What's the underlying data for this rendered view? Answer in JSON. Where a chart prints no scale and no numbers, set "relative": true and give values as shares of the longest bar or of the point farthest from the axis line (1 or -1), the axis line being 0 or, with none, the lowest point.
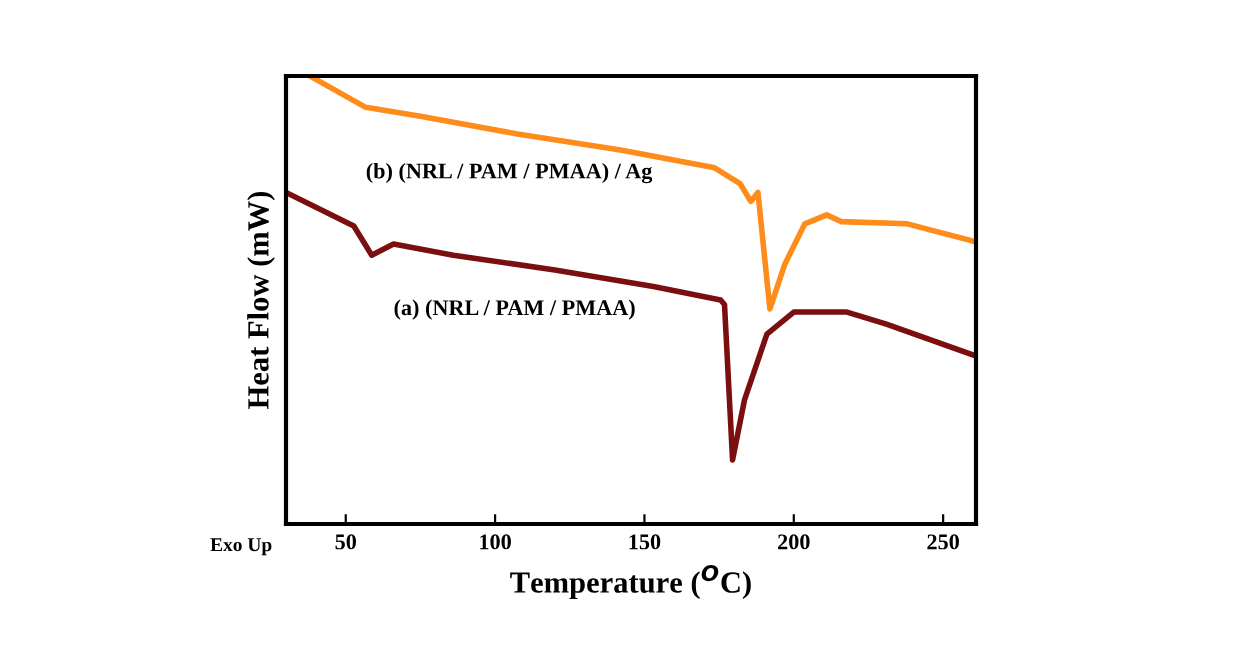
{
  "chart_data": {
    "type": "line",
    "relative": true,
    "xlabel": "Temperature ($^{O}$C)",
    "ylabel": "Heat Flow (mW)",
    "xlim": [
      30,
      261
    ],
    "xticks": [
      50,
      100,
      150,
      200,
      250
    ],
    "grid": false,
    "legend": false,
    "marker": "none",
    "line_style": "solid",
    "annotations": [
      "Exo Up"
    ],
    "series": [
      {
        "name": "(b) (NRL / PAM / PMAA) / Ag",
        "color": "#ff8c1a",
        "x": [
          38,
          56.7,
          75,
          108,
          142,
          173.5,
          182,
          185.6,
          188,
          192,
          197,
          203.7,
          211,
          215.8,
          238,
          261
        ],
        "values": [
          1.0,
          0.93,
          0.91,
          0.87,
          0.835,
          0.795,
          0.76,
          0.72,
          0.74,
          0.48,
          0.58,
          0.67,
          0.69,
          0.675,
          0.67,
          0.63
        ]
      },
      {
        "name": "(a) (NRL / PAM / PMAA)",
        "color": "#7b0f0f",
        "x": [
          30,
          52.7,
          58.7,
          66,
          86,
          120,
          153,
          175.5,
          176.8,
          179.5,
          183.5,
          191,
          200,
          217.8,
          231,
          261
        ],
        "values": [
          0.74,
          0.665,
          0.6,
          0.625,
          0.6,
          0.567,
          0.53,
          0.5,
          0.49,
          0.143,
          0.277,
          0.424,
          0.473,
          0.473,
          0.446,
          0.375
        ]
      }
    ]
  }
}
